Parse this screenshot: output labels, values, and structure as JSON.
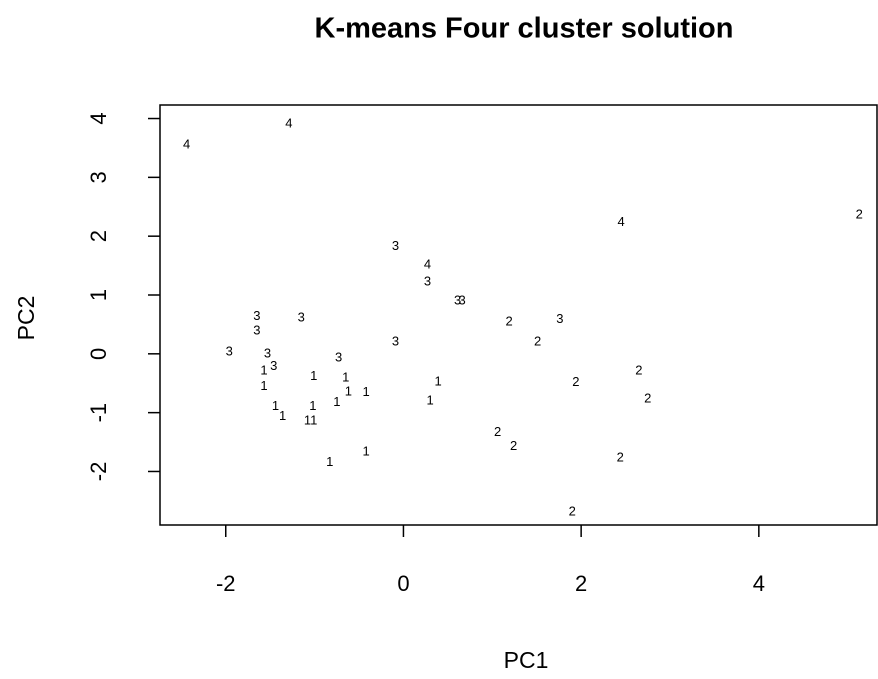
{
  "chart_data": {
    "type": "scatter",
    "title": "K-means Four cluster solution",
    "x_label": "PC1",
    "y_label": "PC2",
    "xlim": [
      -2.74,
      5.33
    ],
    "ylim": [
      -2.91,
      4.23
    ],
    "xticks": [
      -2,
      0,
      2,
      4
    ],
    "yticks": [
      -2,
      -1,
      0,
      1,
      2,
      3,
      4
    ],
    "series": [
      {
        "name": "1",
        "color": "#000000",
        "x": [
          -1.01,
          -0.65,
          -1.57,
          -1.57,
          -0.62,
          -0.42,
          -0.75,
          0.39,
          0.3,
          -1.44,
          -1.36,
          -1.02,
          -1.08,
          -1.01,
          -0.42,
          -0.83
        ],
        "values": [
          -0.39,
          -0.41,
          -0.29,
          -0.56,
          -0.65,
          -0.66,
          -0.83,
          -0.48,
          -0.8,
          -0.9,
          -1.07,
          -0.9,
          -1.14,
          -1.14,
          -1.67,
          -1.85
        ]
      },
      {
        "name": "2",
        "color": "#000000",
        "x": [
          5.13,
          1.19,
          1.51,
          1.94,
          2.65,
          2.75,
          1.06,
          1.24,
          2.44,
          1.9
        ],
        "values": [
          2.36,
          0.54,
          0.2,
          -0.49,
          -0.29,
          -0.77,
          -1.34,
          -1.58,
          -1.77,
          -2.69
        ]
      },
      {
        "name": "3",
        "color": "#000000",
        "x": [
          -0.09,
          0.27,
          0.61,
          0.66,
          1.76,
          -1.65,
          -1.65,
          -1.15,
          -1.96,
          -1.53,
          -1.46,
          -0.73,
          -0.09
        ],
        "values": [
          1.82,
          1.22,
          0.9,
          0.9,
          0.58,
          0.63,
          0.39,
          0.61,
          0.03,
          0.0,
          -0.22,
          -0.07,
          0.2
        ]
      },
      {
        "name": "4",
        "color": "#000000",
        "x": [
          -2.44,
          -1.29,
          0.27,
          2.45
        ],
        "values": [
          3.55,
          3.91,
          1.51,
          2.23
        ]
      }
    ]
  }
}
